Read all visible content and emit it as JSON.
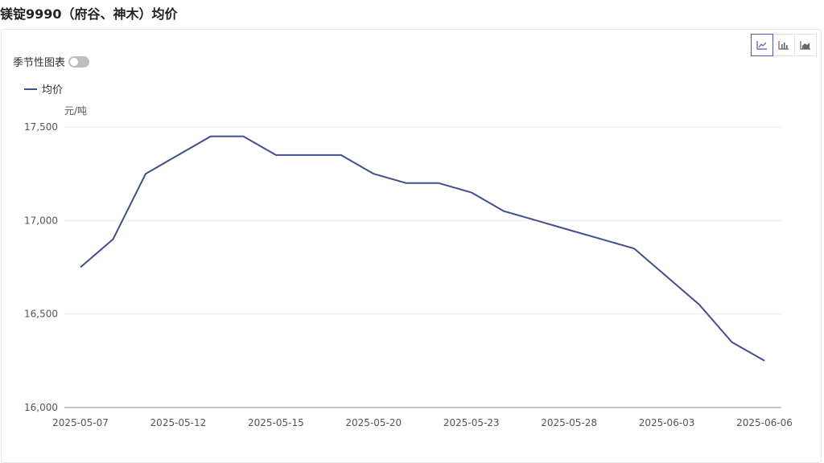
{
  "page": {
    "title": "镁锭9990（府谷、神木）均价"
  },
  "controls": {
    "seasonal_label": "季节性图表",
    "seasonal_on": false,
    "chart_types": [
      {
        "icon": "line-chart-icon",
        "active": true
      },
      {
        "icon": "bar-chart-icon",
        "active": false
      },
      {
        "icon": "area-chart-icon",
        "active": false
      }
    ]
  },
  "colors": {
    "series": "#404e8c",
    "grid": "#ebebeb",
    "axis": "#8a8a8a",
    "accent": "#4a5ba8"
  },
  "chart_data": {
    "type": "line",
    "title": "镁锭9990（府谷、神木）均价",
    "ylabel": "元/吨",
    "ylim": [
      16000,
      17500
    ],
    "yticks": [
      "16,000",
      "16,500",
      "17,000",
      "17,500"
    ],
    "ytick_values": [
      16000,
      16500,
      17000,
      17500
    ],
    "x": [
      "2025-05-07",
      "2025-05-08",
      "2025-05-09",
      "2025-05-12",
      "2025-05-13",
      "2025-05-14",
      "2025-05-15",
      "2025-05-16",
      "2025-05-19",
      "2025-05-20",
      "2025-05-21",
      "2025-05-22",
      "2025-05-23",
      "2025-05-26",
      "2025-05-27",
      "2025-05-28",
      "2025-05-29",
      "2025-05-30",
      "2025-06-03",
      "2025-06-04",
      "2025-06-05",
      "2025-06-06"
    ],
    "xtick_labels": [
      "2025-05-07",
      "2025-05-12",
      "2025-05-15",
      "2025-05-20",
      "2025-05-23",
      "2025-05-28",
      "2025-06-03",
      "2025-06-06"
    ],
    "series": [
      {
        "name": "均价",
        "values": [
          16750,
          16900,
          17250,
          17350,
          17450,
          17450,
          17350,
          17350,
          17350,
          17250,
          17200,
          17200,
          17150,
          17050,
          17000,
          16950,
          16900,
          16850,
          16700,
          16550,
          16350,
          16250
        ]
      }
    ],
    "grid": true,
    "legend": "top-left"
  }
}
